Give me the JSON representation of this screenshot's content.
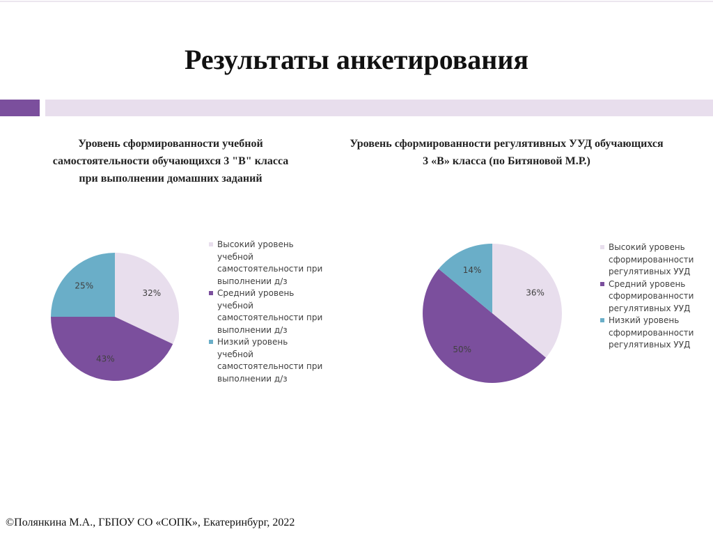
{
  "slide": {
    "title": "Результаты анкетирования",
    "footer": "©Полянкина М.А., ГБПОУ СО «СОПК», Екатеринбург, 2022"
  },
  "chart_data": [
    {
      "type": "pie",
      "title": "Уровень сформированности учебной самостоятельности обучающихся 3 \"В\" класса при выполнении домашних заданий",
      "categories": [
        "Высокий уровень учебной самостоятельности при выполнении д/з",
        "Средний уровень учебной самостоятельности при выполнении д/з",
        "Низкий уровень учебной самостоятельности при выполнении д/з"
      ],
      "values": [
        32,
        43,
        25
      ],
      "value_labels": [
        "32%",
        "43%",
        "25%"
      ],
      "colors": [
        "#e8deed",
        "#7b4f9d",
        "#6aaec8"
      ],
      "legend": "right"
    },
    {
      "type": "pie",
      "title": "Уровень сформированности регулятивных УУД обучающихся 3 «В» класса (по Битяновой М.Р.)",
      "categories": [
        "Высокий уровень сформированности регулятивных УУД",
        "Средний уровень сформированности регулятивных УУД",
        "Низкий уровень сформированности регулятивных УУД"
      ],
      "values": [
        36,
        50,
        14
      ],
      "value_labels": [
        "36%",
        "50%",
        "14%"
      ],
      "colors": [
        "#e8deed",
        "#7b4f9d",
        "#6aaec8"
      ],
      "legend": "right"
    }
  ]
}
